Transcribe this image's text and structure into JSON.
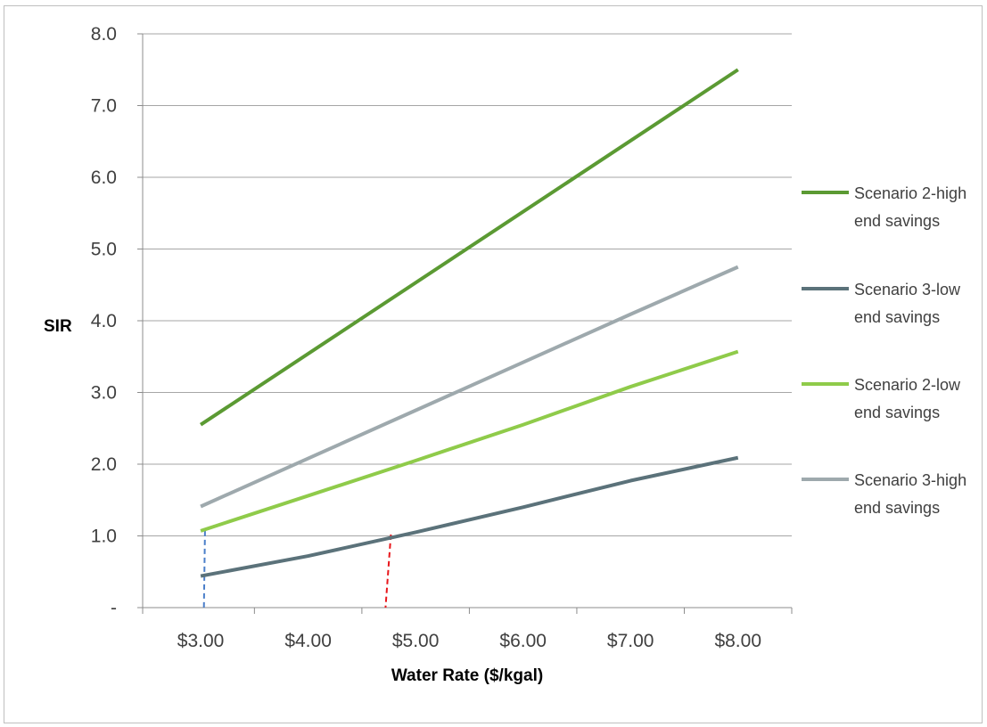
{
  "chart_data": {
    "type": "line",
    "xlabel": "Water Rate ($/kgal)",
    "ylabel": "SIR",
    "xlim": [
      2.46,
      8.5
    ],
    "ylim": [
      0,
      8
    ],
    "grid": true,
    "legend_position": "right",
    "x_tick_values": [
      3,
      4,
      5,
      6,
      7,
      8
    ],
    "x_tick_labels": [
      "$3.00",
      "$4.00",
      "$5.00",
      "$6.00",
      "$7.00",
      "$8.00"
    ],
    "y_tick_values": [
      0,
      1,
      2,
      3,
      4,
      5,
      6,
      7,
      8
    ],
    "y_tick_labels": [
      "-",
      "1.0",
      "2.0",
      "3.0",
      "4.0",
      "5.0",
      "6.0",
      "7.0",
      "8.0"
    ],
    "x_minor_ticks": [
      2.46,
      3.5,
      4.5,
      5.5,
      6.5,
      7.5,
      8.5
    ],
    "series": [
      {
        "name": "Scenario 2-high end savings",
        "name_lines": [
          "Scenario 2-high",
          "end savings"
        ],
        "color": "#5b9a33",
        "x": [
          3,
          8
        ],
        "y": [
          2.55,
          7.5
        ]
      },
      {
        "name": "Scenario 3-low end savings",
        "name_lines": [
          "Scenario 3-low",
          "end savings"
        ],
        "color": "#5b727a",
        "x": [
          3,
          4,
          5,
          6,
          7,
          8
        ],
        "y": [
          0.44,
          0.72,
          1.05,
          1.4,
          1.77,
          2.09
        ]
      },
      {
        "name": "Scenario 2-low end savings",
        "name_lines": [
          "Scenario 2-low",
          "end savings"
        ],
        "color": "#8fcb4a",
        "x": [
          3,
          4,
          5,
          6,
          7,
          8
        ],
        "y": [
          1.07,
          1.56,
          2.05,
          2.55,
          3.08,
          3.57
        ]
      },
      {
        "name": "Scenario 3-high end savings",
        "name_lines": [
          "Scenario 3-high",
          "end savings"
        ],
        "color": "#9ea9ad",
        "x": [
          3,
          4,
          5,
          6,
          7,
          8
        ],
        "y": [
          1.41,
          2.08,
          2.75,
          3.42,
          4.09,
          4.75
        ]
      }
    ],
    "reference_lines": [
      {
        "color": "#4a7ec9",
        "x": [
          3.04,
          3.03
        ],
        "y": [
          1.07,
          0
        ]
      },
      {
        "color": "#e8161b",
        "x": [
          4.77,
          4.72
        ],
        "y": [
          1.02,
          0
        ]
      }
    ]
  }
}
